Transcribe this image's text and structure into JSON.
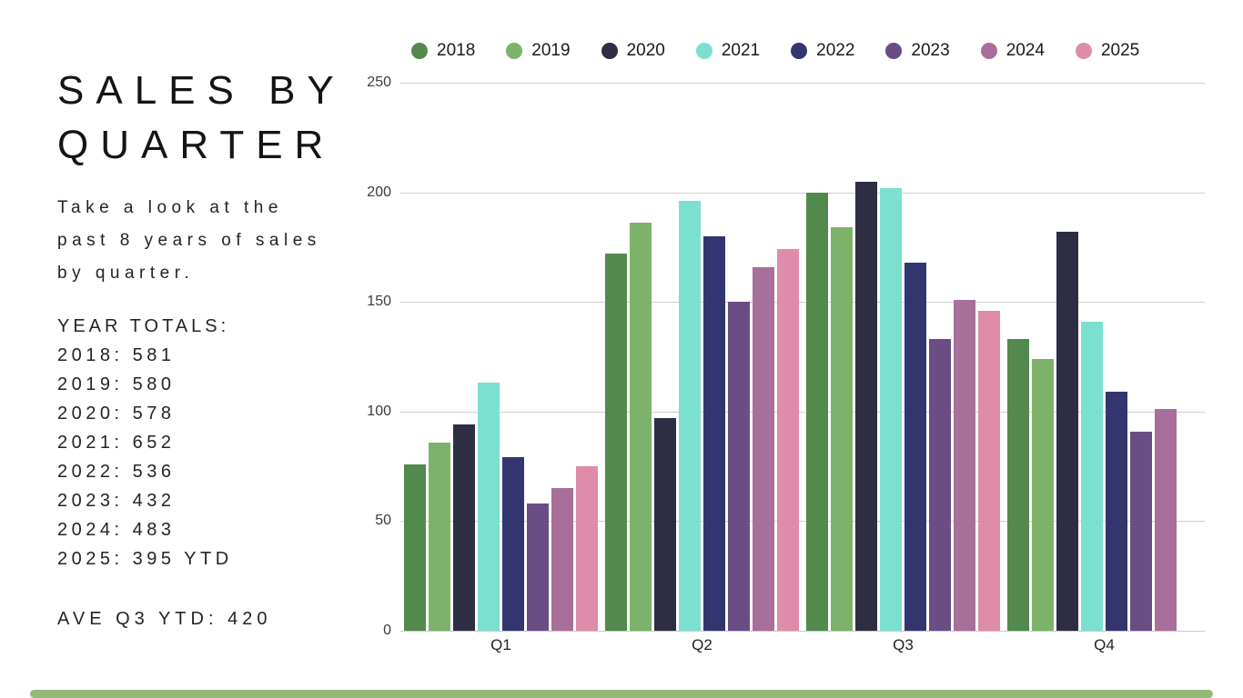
{
  "left": {
    "title": "SALES BY\nQUARTER",
    "description": "Take a look at the\npast 8 years of sales\nby quarter.",
    "totals_heading": "YEAR TOTALS:",
    "totals": [
      "2018: 581",
      "2019: 580",
      "2020: 578",
      "2021: 652",
      "2022: 536",
      "2023: 432",
      "2024: 483",
      "2025: 395 YTD"
    ],
    "average_line": "AVE Q3 YTD: 420"
  },
  "colors": {
    "accent_bar": "#94b877",
    "gridline": "#cfcfcf",
    "text": "#242424"
  },
  "chart_data": {
    "type": "bar",
    "title": "Sales by quarter, 2018-2025",
    "categories": [
      "Q1",
      "Q2",
      "Q3",
      "Q4"
    ],
    "series": [
      {
        "name": "2018",
        "color": "#528a4d",
        "values": [
          76,
          172,
          200,
          133
        ]
      },
      {
        "name": "2019",
        "color": "#7cb269",
        "values": [
          86,
          186,
          184,
          124
        ]
      },
      {
        "name": "2020",
        "color": "#2d2d44",
        "values": [
          94,
          97,
          205,
          182
        ]
      },
      {
        "name": "2021",
        "color": "#7ce0d0",
        "values": [
          113,
          196,
          202,
          141
        ]
      },
      {
        "name": "2022",
        "color": "#32356e",
        "values": [
          79,
          180,
          168,
          109
        ]
      },
      {
        "name": "2023",
        "color": "#6b4d85",
        "values": [
          58,
          150,
          133,
          91
        ]
      },
      {
        "name": "2024",
        "color": "#a76f99",
        "values": [
          65,
          166,
          151,
          101
        ]
      },
      {
        "name": "2025",
        "color": "#de8caa",
        "values": [
          75,
          174,
          146,
          null
        ]
      }
    ],
    "ylim": [
      0,
      250
    ],
    "yticks": [
      0,
      50,
      100,
      150,
      200,
      250
    ],
    "grid": "horizontal",
    "legend_position": "top",
    "xlabel": "",
    "ylabel": ""
  }
}
